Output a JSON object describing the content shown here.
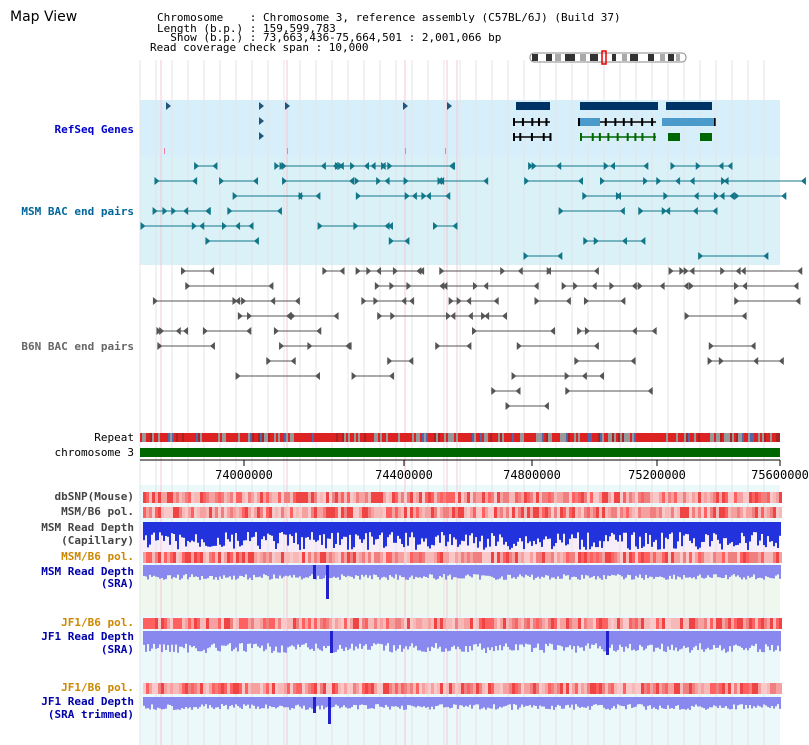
{
  "header": {
    "title": "Map View",
    "info_lines": [
      "Chromosome    : Chromosome 3, reference assembly (C57BL/6J) (Build 37)",
      "Length (b.p.) : 159,599,783",
      "  Show (b.p.) : 73,663,436-75,664,501 : 2,001,066 bp",
      "Read coverage check span : 10,000"
    ]
  },
  "tracks": {
    "refseq_genes": "RefSeq Genes",
    "msm_bac": "MSM BAC end pairs",
    "b6n_bac": "B6N BAC end pairs",
    "repeat": "Repeat",
    "chromosome": "chromosome 3",
    "dbsnp": "dbSNP(Mouse)",
    "msm_b6_pol_1": "MSM/B6 pol.",
    "msm_read_depth_cap_1": "MSM Read Depth",
    "msm_read_depth_cap_2": "(Capillary)",
    "msm_b6_pol_2": "MSM/B6 pol.",
    "msm_read_depth_sra_1": "MSM Read Depth",
    "msm_read_depth_sra_2": "(SRA)",
    "jf1_b6_pol_1": "JF1/B6 pol.",
    "jf1_read_depth_sra_1": "JF1 Read Depth",
    "jf1_read_depth_sra_2": "(SRA)",
    "jf1_b6_pol_2": "JF1/B6 pol.",
    "jf1_read_depth_trim_1": "JF1 Read Depth",
    "jf1_read_depth_trim_2": "(SRA trimmed)"
  },
  "axis": {
    "ticks": [
      "74000000",
      "74400000",
      "74800000",
      "75200000",
      "75600000"
    ]
  },
  "colors": {
    "refseq_label": "#0000cc",
    "msm_label": "#006699",
    "b6n_label": "#666666",
    "pol_orange": "#cc8800",
    "depth_blue": "#0000aa",
    "refseq_band": "#d7effa",
    "msm_band": "#d9f1f7",
    "chrom_green": "#006600"
  }
}
